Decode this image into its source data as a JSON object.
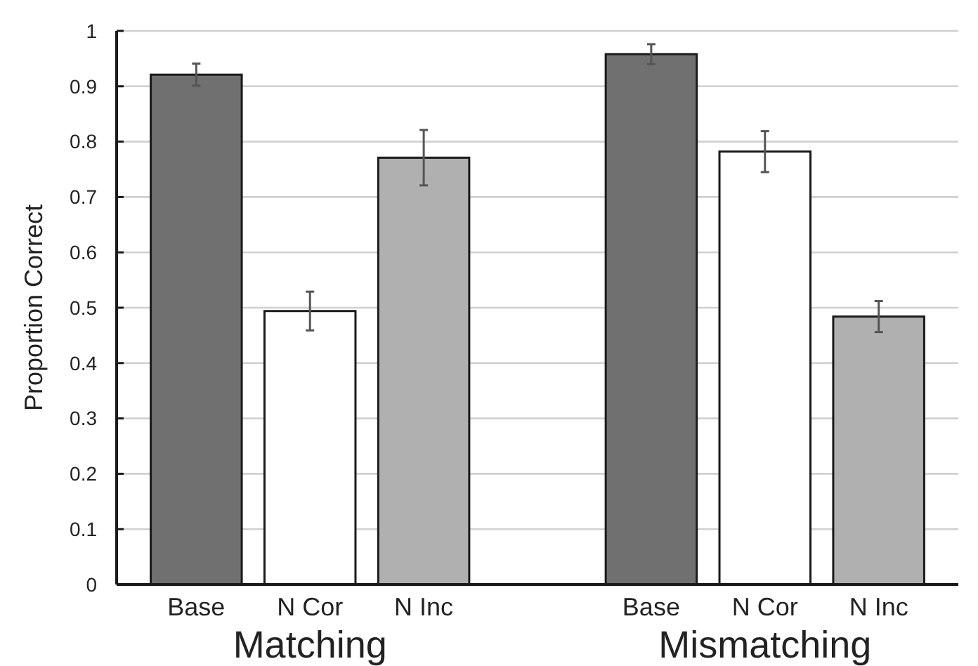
{
  "chart_data": {
    "type": "bar",
    "ylabel": "Proportion Correct",
    "categories": [
      "Base",
      "N Cor",
      "N Inc",
      null,
      "Base",
      "N Cor",
      "N Inc"
    ],
    "values": [
      0.921,
      0.494,
      0.771,
      null,
      0.958,
      0.782,
      0.484
    ],
    "errors": [
      0.02,
      0.035,
      0.05,
      null,
      0.018,
      0.037,
      0.028
    ],
    "colors": [
      "#707070",
      "#ffffff",
      "#b0b0b0",
      null,
      "#707070",
      "#ffffff",
      "#b0b0b0"
    ],
    "ylim": [
      0,
      1
    ],
    "yticks": [
      0,
      0.1,
      0.2,
      0.3,
      0.4,
      0.5,
      0.6,
      0.7,
      0.8,
      0.9,
      1
    ],
    "grid": "y",
    "annotations": [
      "Matching",
      "Mismatching"
    ]
  }
}
